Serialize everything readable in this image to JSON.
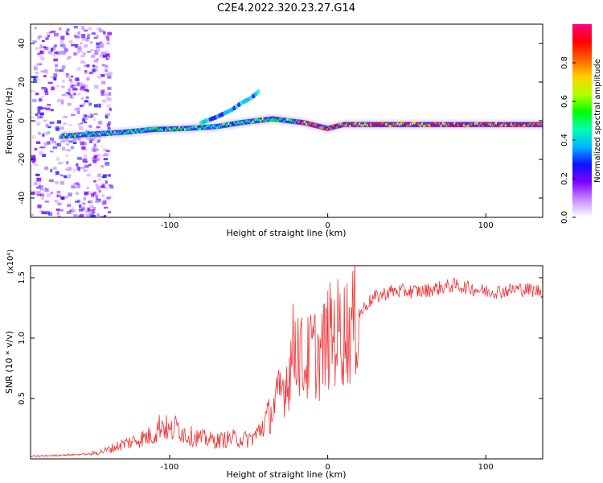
{
  "title": "C2E4.2022.320.23.27.G14",
  "chart_data": [
    {
      "type": "heatmap",
      "xlabel": "Height of straight line (km)",
      "ylabel": "Frequency (Hz)",
      "xlim": [
        -188,
        136
      ],
      "ylim": [
        -50,
        50
      ],
      "x_ticks": [
        -100,
        0,
        100
      ],
      "y_ticks": [
        -40,
        -20,
        0,
        20,
        40
      ],
      "colorbar": {
        "label": "Normalized spectral amplitude",
        "range": [
          0,
          1
        ],
        "ticks": [
          "0.0",
          "0.2",
          "0.4",
          "0.6",
          "0.8"
        ],
        "colors": [
          "#ffffff",
          "#c88cff",
          "#8000ff",
          "#1010ff",
          "#00b4ff",
          "#00ffb4",
          "#00ff00",
          "#b4ff00",
          "#ffd000",
          "#ff6000",
          "#ff0000",
          "#ff0080"
        ]
      },
      "ridge": {
        "x": [
          -168,
          -150,
          -130,
          -110,
          -90,
          -70,
          -55,
          -45,
          -35,
          -25,
          -15,
          -5,
          0,
          10,
          30,
          60,
          90,
          120,
          136
        ],
        "y": [
          -8,
          -7,
          -6,
          -4.5,
          -4,
          -3,
          -1,
          0,
          1,
          0,
          -1,
          -3,
          -4,
          -2,
          -2,
          -2,
          -2,
          -2,
          -2
        ]
      },
      "upper_branch": {
        "x": [
          -80,
          -70,
          -60,
          -55,
          -48,
          -44
        ],
        "y": [
          -1,
          2,
          6,
          9,
          12,
          15
        ]
      }
    },
    {
      "type": "line",
      "xlabel": "Height of straight line (km)",
      "ylabel": "SNR (10 * v/v)",
      "multiplier": "(x10⁴)",
      "xlim": [
        -188,
        136
      ],
      "ylim": [
        0,
        1.6
      ],
      "x_ticks": [
        -100,
        0,
        100
      ],
      "y_ticks": [
        "0.5",
        "1.0",
        "1.5"
      ],
      "series": [
        {
          "color": "#ee3333",
          "x": [
            -188,
            -170,
            -150,
            -140,
            -130,
            -120,
            -110,
            -105,
            -100,
            -95,
            -90,
            -80,
            -70,
            -60,
            -50,
            -45,
            -40,
            -35,
            -30,
            -25,
            -22,
            -20,
            -18,
            -15,
            -10,
            -5,
            0,
            5,
            10,
            15,
            20,
            25,
            30,
            40,
            60,
            80,
            100,
            110,
            120,
            136
          ],
          "y": [
            0.02,
            0.03,
            0.04,
            0.07,
            0.12,
            0.16,
            0.2,
            0.3,
            0.22,
            0.27,
            0.2,
            0.17,
            0.15,
            0.17,
            0.16,
            0.2,
            0.3,
            0.4,
            0.55,
            0.68,
            0.9,
            1.0,
            0.9,
            0.75,
            0.9,
            0.85,
            1.0,
            1.05,
            1.05,
            1.08,
            1.2,
            1.3,
            1.35,
            1.4,
            1.4,
            1.45,
            1.4,
            1.4,
            1.42,
            1.4
          ]
        }
      ]
    }
  ]
}
